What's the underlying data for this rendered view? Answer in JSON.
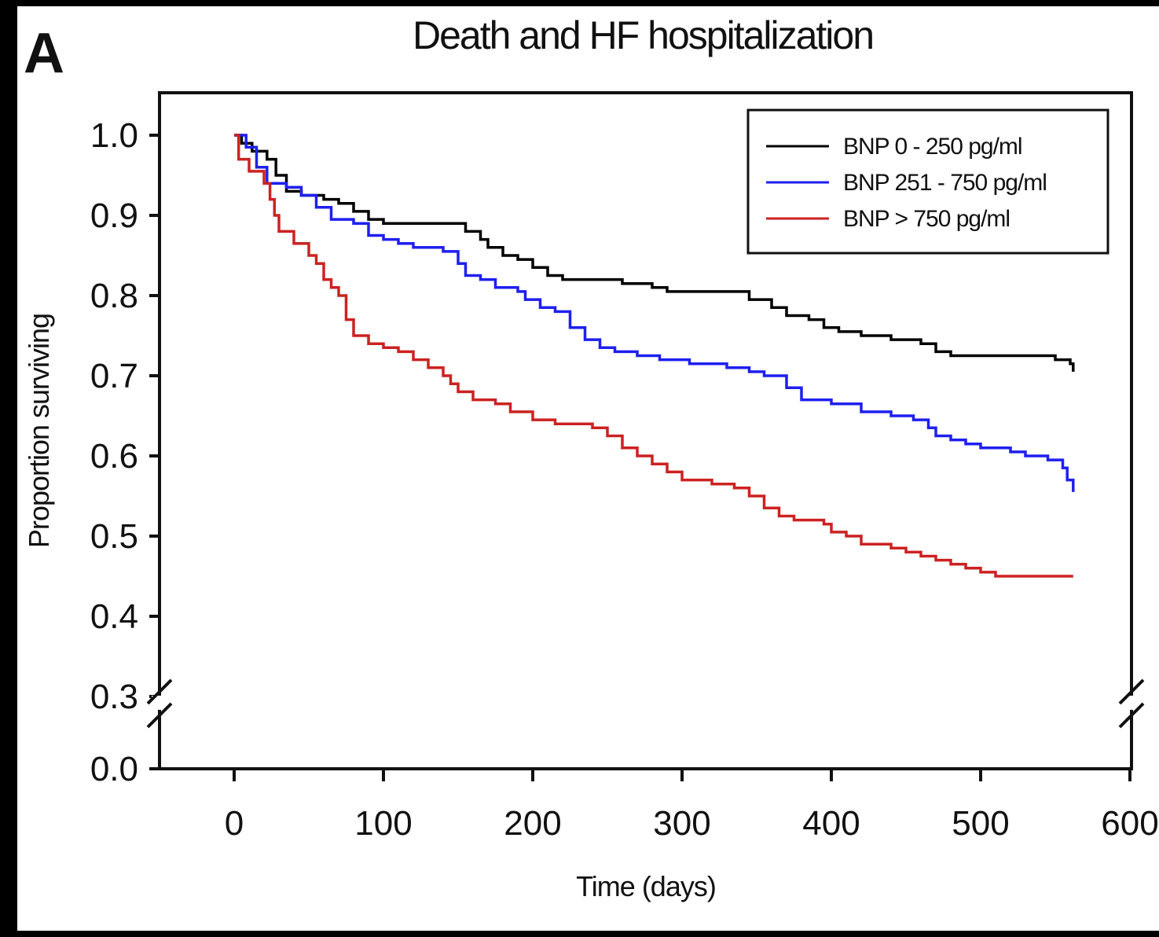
{
  "panel_label": "A",
  "chart_data": {
    "type": "line",
    "title": "Death and HF hospitalization",
    "xlabel": "Time (days)",
    "ylabel": "Proportion surviving",
    "xlim": [
      -50,
      600
    ],
    "x_ticks": [
      0,
      100,
      200,
      300,
      400,
      500,
      600
    ],
    "x_tick_labels": [
      "0",
      "100",
      "200",
      "300",
      "400",
      "500",
      "600"
    ],
    "y_ticks": [
      0.0,
      0.3,
      0.4,
      0.5,
      0.6,
      0.7,
      0.8,
      0.9,
      1.0
    ],
    "y_tick_labels": [
      "0.0",
      "0.3",
      "0.4",
      "0.5",
      "0.6",
      "0.7",
      "0.8",
      "0.9",
      "1.0"
    ],
    "y_axis_break": [
      0.0,
      0.3
    ],
    "grid": false,
    "legend_position": "top-right",
    "series": [
      {
        "name": "BNP 0 - 250 pg/ml",
        "color": "#000000",
        "points": [
          [
            0,
            1.0
          ],
          [
            5,
            0.99
          ],
          [
            12,
            0.98
          ],
          [
            22,
            0.97
          ],
          [
            28,
            0.95
          ],
          [
            35,
            0.93
          ],
          [
            45,
            0.925
          ],
          [
            60,
            0.92
          ],
          [
            70,
            0.915
          ],
          [
            80,
            0.905
          ],
          [
            90,
            0.895
          ],
          [
            100,
            0.89
          ],
          [
            120,
            0.89
          ],
          [
            145,
            0.89
          ],
          [
            155,
            0.88
          ],
          [
            165,
            0.87
          ],
          [
            170,
            0.86
          ],
          [
            180,
            0.85
          ],
          [
            190,
            0.845
          ],
          [
            200,
            0.835
          ],
          [
            210,
            0.825
          ],
          [
            220,
            0.82
          ],
          [
            250,
            0.82
          ],
          [
            260,
            0.815
          ],
          [
            280,
            0.81
          ],
          [
            290,
            0.805
          ],
          [
            330,
            0.805
          ],
          [
            345,
            0.795
          ],
          [
            360,
            0.785
          ],
          [
            370,
            0.775
          ],
          [
            385,
            0.77
          ],
          [
            395,
            0.76
          ],
          [
            405,
            0.755
          ],
          [
            420,
            0.75
          ],
          [
            440,
            0.745
          ],
          [
            460,
            0.74
          ],
          [
            470,
            0.73
          ],
          [
            480,
            0.725
          ],
          [
            520,
            0.725
          ],
          [
            550,
            0.72
          ],
          [
            560,
            0.715
          ],
          [
            562,
            0.705
          ]
        ]
      },
      {
        "name": "BNP 251 - 750 pg/ml",
        "color": "#1f1ff0",
        "points": [
          [
            0,
            1.0
          ],
          [
            8,
            0.985
          ],
          [
            15,
            0.96
          ],
          [
            22,
            0.94
          ],
          [
            35,
            0.935
          ],
          [
            45,
            0.925
          ],
          [
            55,
            0.91
          ],
          [
            65,
            0.895
          ],
          [
            80,
            0.89
          ],
          [
            90,
            0.875
          ],
          [
            100,
            0.87
          ],
          [
            110,
            0.865
          ],
          [
            120,
            0.86
          ],
          [
            140,
            0.855
          ],
          [
            150,
            0.84
          ],
          [
            155,
            0.825
          ],
          [
            165,
            0.82
          ],
          [
            175,
            0.81
          ],
          [
            190,
            0.805
          ],
          [
            195,
            0.795
          ],
          [
            205,
            0.785
          ],
          [
            215,
            0.78
          ],
          [
            225,
            0.76
          ],
          [
            235,
            0.745
          ],
          [
            245,
            0.735
          ],
          [
            255,
            0.73
          ],
          [
            270,
            0.725
          ],
          [
            285,
            0.72
          ],
          [
            305,
            0.715
          ],
          [
            320,
            0.715
          ],
          [
            330,
            0.71
          ],
          [
            345,
            0.705
          ],
          [
            355,
            0.7
          ],
          [
            370,
            0.685
          ],
          [
            380,
            0.67
          ],
          [
            400,
            0.665
          ],
          [
            420,
            0.655
          ],
          [
            440,
            0.65
          ],
          [
            455,
            0.645
          ],
          [
            465,
            0.635
          ],
          [
            470,
            0.625
          ],
          [
            480,
            0.62
          ],
          [
            490,
            0.615
          ],
          [
            500,
            0.61
          ],
          [
            520,
            0.605
          ],
          [
            530,
            0.6
          ],
          [
            545,
            0.595
          ],
          [
            555,
            0.585
          ],
          [
            558,
            0.57
          ],
          [
            562,
            0.555
          ]
        ]
      },
      {
        "name": "BNP > 750 pg/ml",
        "color": "#cc2222",
        "points": [
          [
            0,
            1.0
          ],
          [
            3,
            0.97
          ],
          [
            10,
            0.955
          ],
          [
            20,
            0.94
          ],
          [
            24,
            0.92
          ],
          [
            27,
            0.9
          ],
          [
            30,
            0.88
          ],
          [
            40,
            0.865
          ],
          [
            50,
            0.85
          ],
          [
            55,
            0.84
          ],
          [
            60,
            0.82
          ],
          [
            65,
            0.81
          ],
          [
            70,
            0.8
          ],
          [
            75,
            0.77
          ],
          [
            80,
            0.75
          ],
          [
            90,
            0.74
          ],
          [
            100,
            0.735
          ],
          [
            110,
            0.73
          ],
          [
            120,
            0.72
          ],
          [
            130,
            0.71
          ],
          [
            140,
            0.7
          ],
          [
            145,
            0.69
          ],
          [
            150,
            0.68
          ],
          [
            160,
            0.67
          ],
          [
            175,
            0.665
          ],
          [
            185,
            0.655
          ],
          [
            200,
            0.645
          ],
          [
            215,
            0.64
          ],
          [
            240,
            0.635
          ],
          [
            250,
            0.625
          ],
          [
            260,
            0.61
          ],
          [
            270,
            0.6
          ],
          [
            280,
            0.59
          ],
          [
            290,
            0.58
          ],
          [
            300,
            0.57
          ],
          [
            320,
            0.565
          ],
          [
            335,
            0.56
          ],
          [
            345,
            0.55
          ],
          [
            355,
            0.535
          ],
          [
            365,
            0.525
          ],
          [
            375,
            0.52
          ],
          [
            395,
            0.515
          ],
          [
            400,
            0.505
          ],
          [
            410,
            0.5
          ],
          [
            420,
            0.49
          ],
          [
            440,
            0.485
          ],
          [
            450,
            0.48
          ],
          [
            460,
            0.475
          ],
          [
            470,
            0.47
          ],
          [
            480,
            0.465
          ],
          [
            490,
            0.46
          ],
          [
            500,
            0.455
          ],
          [
            510,
            0.45
          ],
          [
            562,
            0.45
          ]
        ]
      }
    ]
  }
}
